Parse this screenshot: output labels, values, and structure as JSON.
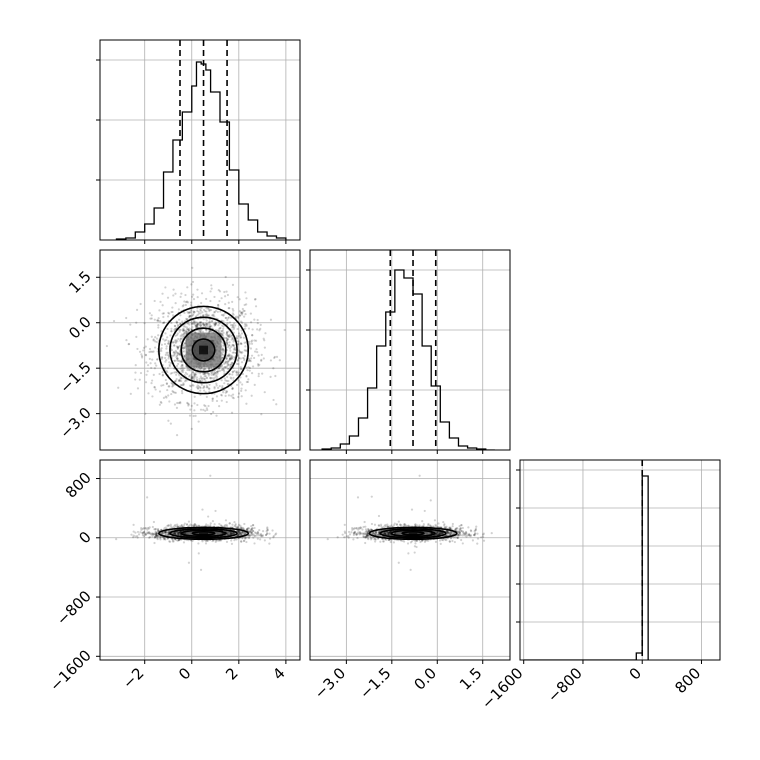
{
  "chart_data": {
    "type": "corner",
    "parameters": [
      "",
      "",
      ""
    ],
    "grid": true,
    "panels": [
      {
        "id": "hist-p0",
        "type": "histogram",
        "row": 0,
        "col": 0,
        "xlim": [
          -3.9,
          4.6
        ],
        "ylim": [
          0,
          1.0
        ],
        "bin_edges": [
          -3.2,
          -2.8,
          -2.4,
          -2.0,
          -1.6,
          -1.2,
          -0.8,
          -0.4,
          0.0,
          0.2,
          0.4,
          0.6,
          0.8,
          1.2,
          1.6,
          2.0,
          2.4,
          2.8,
          3.2,
          3.6,
          4.0
        ],
        "counts": [
          0.005,
          0.01,
          0.04,
          0.08,
          0.16,
          0.34,
          0.5,
          0.64,
          0.77,
          0.89,
          0.88,
          0.85,
          0.74,
          0.59,
          0.35,
          0.18,
          0.1,
          0.04,
          0.02,
          0.01
        ],
        "quantile_lines": [
          -0.5,
          0.5,
          1.5
        ],
        "yticks": [
          0.3,
          0.6,
          0.9
        ]
      },
      {
        "id": "scatter-p0-p1",
        "type": "2d_density",
        "row": 1,
        "col": 0,
        "xlim": [
          -3.9,
          4.6
        ],
        "ylim": [
          -4.2,
          2.4
        ],
        "center": [
          0.5,
          -0.9
        ],
        "spread": [
          0.95,
          0.72
        ],
        "contour_radii": [
          0.5,
          1.0,
          1.5,
          2.0
        ],
        "yticks": [
          1.5,
          0.0,
          -1.5,
          -3.0
        ],
        "ytick_labels": [
          "1.5",
          "0.0",
          "−1.5",
          "−3.0"
        ]
      },
      {
        "id": "hist-p1",
        "type": "histogram",
        "row": 1,
        "col": 1,
        "xlim": [
          -4.2,
          2.4
        ],
        "ylim": [
          0,
          1.0
        ],
        "bin_edges": [
          -3.8,
          -3.5,
          -3.2,
          -2.9,
          -2.6,
          -2.3,
          -2.0,
          -1.7,
          -1.4,
          -1.1,
          -0.8,
          -0.5,
          -0.2,
          0.1,
          0.4,
          0.7,
          1.0,
          1.3,
          1.6,
          1.9
        ],
        "counts": [
          0.005,
          0.01,
          0.03,
          0.07,
          0.16,
          0.31,
          0.52,
          0.69,
          0.9,
          0.86,
          0.78,
          0.52,
          0.32,
          0.14,
          0.06,
          0.02,
          0.01,
          0.005,
          0.0
        ],
        "quantile_lines": [
          -1.55,
          -0.8,
          -0.05
        ],
        "yticks": [
          0.3,
          0.6,
          0.9
        ]
      },
      {
        "id": "scatter-p0-p2",
        "type": "2d_density",
        "row": 2,
        "col": 0,
        "xlim": [
          -3.9,
          4.6
        ],
        "ylim": [
          -1650,
          1050
        ],
        "center": [
          0.5,
          60
        ],
        "spread": [
          0.95,
          40
        ],
        "contour_radii": [
          0.5,
          1.0,
          1.5,
          2.0
        ],
        "yticks": [
          800,
          0,
          -800,
          -1600
        ],
        "ytick_labels": [
          "800",
          "0",
          "−800",
          "−1600"
        ],
        "xticks": [
          -2,
          0,
          2,
          4
        ],
        "xtick_labels": [
          "−2",
          "0",
          "2",
          "4"
        ]
      },
      {
        "id": "scatter-p1-p2",
        "type": "2d_density",
        "row": 2,
        "col": 1,
        "xlim": [
          -4.2,
          2.4
        ],
        "ylim": [
          -1650,
          1050
        ],
        "center": [
          -0.8,
          60
        ],
        "spread": [
          0.72,
          40
        ],
        "contour_radii": [
          0.5,
          1.0,
          1.5,
          2.0
        ],
        "xticks": [
          -3.0,
          -1.5,
          0.0,
          1.5
        ],
        "xtick_labels": [
          "−3.0",
          "−1.5",
          "0.0",
          "1.5"
        ]
      },
      {
        "id": "hist-p2",
        "type": "histogram",
        "row": 2,
        "col": 2,
        "xlim": [
          -1650,
          1050
        ],
        "ylim": [
          0,
          1.0
        ],
        "bin_edges": [
          -1600,
          -1520,
          -1440,
          -1360,
          -1280,
          -1200,
          -1120,
          -1040,
          -960,
          -880,
          -800,
          -720,
          -640,
          -560,
          -480,
          -400,
          -320,
          -240,
          -160,
          -80,
          0,
          80
        ],
        "counts": [
          0,
          0,
          0,
          0,
          0,
          0,
          0,
          0,
          0,
          0,
          0,
          0,
          0,
          0,
          0,
          0,
          0,
          0,
          0,
          0.035,
          0.92
        ],
        "quantile_lines": [
          0
        ],
        "yticks": [
          0.19,
          0.38,
          0.57,
          0.76,
          0.95
        ],
        "xticks": [
          -1600,
          -800,
          0,
          800
        ],
        "xtick_labels": [
          "−1600",
          "−800",
          "0",
          "800"
        ]
      }
    ]
  }
}
